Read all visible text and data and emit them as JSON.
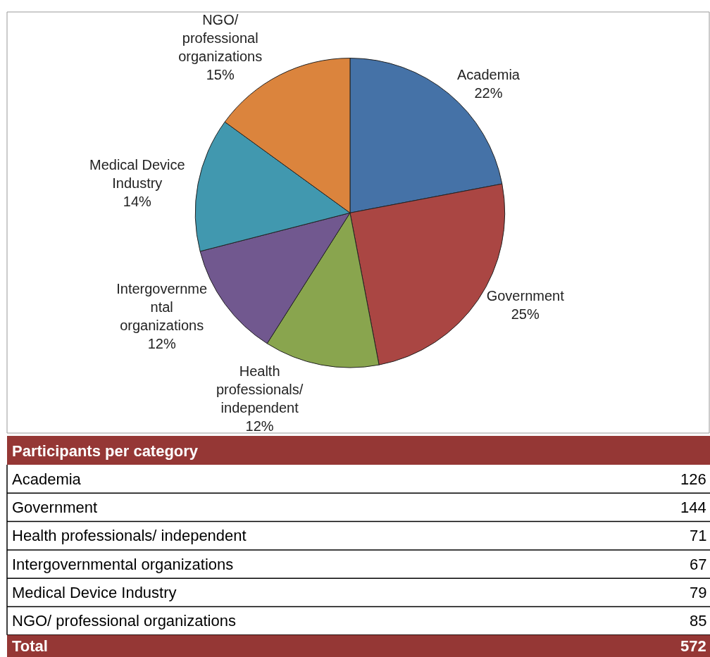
{
  "chart_data": [
    {
      "type": "pie",
      "categories": [
        "Academia",
        "Government",
        "Health professionals/ independent",
        "Intergovernmental organizations",
        "Medical Device Industry",
        "NGO/ professional organizations"
      ],
      "values": [
        22,
        25,
        12,
        12,
        14,
        15
      ],
      "value_labels": [
        "22%",
        "25%",
        "12%",
        "12%",
        "14%",
        "15%"
      ],
      "colors": [
        "#4572a7",
        "#aa4643",
        "#89a54e",
        "#71588f",
        "#4198af",
        "#db843d"
      ],
      "legend": false
    },
    {
      "type": "other",
      "title": "Participants per category",
      "categories": [
        "Academia",
        "Government",
        "Health professionals/ independent",
        "Intergovernmental organizations",
        "Medical Device Industry",
        "NGO/ professional organizations"
      ],
      "values": [
        126,
        144,
        71,
        67,
        79,
        85
      ],
      "data_labels": true,
      "totals": [
        "572"
      ],
      "annotations": [
        "Total"
      ]
    }
  ]
}
